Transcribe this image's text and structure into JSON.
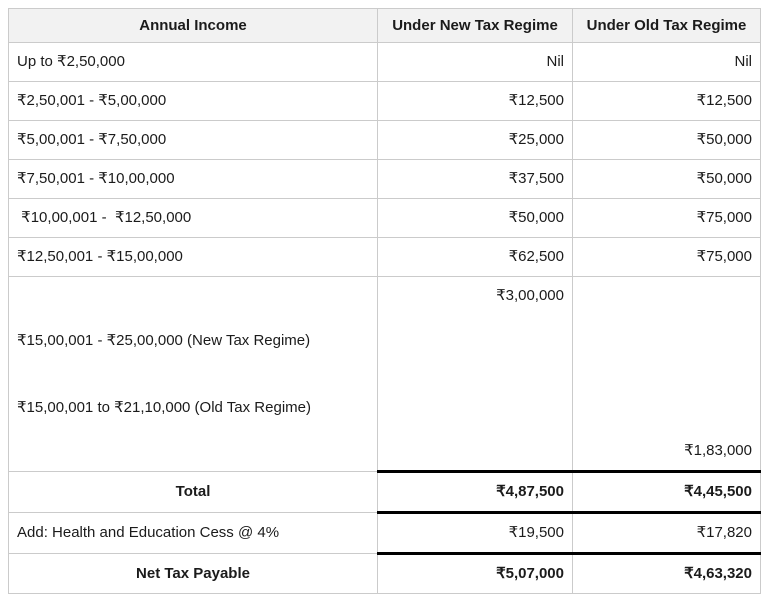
{
  "table": {
    "columns": [
      {
        "label": "Annual Income"
      },
      {
        "label": "Under New Tax Regime"
      },
      {
        "label": "Under Old Tax Regime"
      }
    ],
    "rows": [
      {
        "income": "Up to ₹2,50,000",
        "new": "Nil",
        "old": "Nil"
      },
      {
        "income": "₹2,50,001 - ₹5,00,000",
        "new": "₹12,500",
        "old": "₹12,500"
      },
      {
        "income": "₹5,00,001 - ₹7,50,000",
        "new": "₹25,000",
        "old": "₹50,000"
      },
      {
        "income": "₹7,50,001 - ₹10,00,000",
        "new": "₹37,500",
        "old": "₹50,000"
      },
      {
        "income": " ₹10,00,001 -  ₹12,50,000",
        "new": "₹50,000",
        "old": "₹75,000"
      },
      {
        "income": "₹12,50,001 - ₹15,00,000",
        "new": "₹62,500",
        "old": "₹75,000"
      },
      {
        "income_line1": "₹15,00,001 - ₹25,00,000 (New Tax Regime)",
        "income_line2": "₹15,00,001 to ₹21,10,000 (Old Tax Regime)",
        "new": "₹3,00,000",
        "old": "₹1,83,000"
      }
    ],
    "summary": [
      {
        "label": "Total",
        "new": "₹4,87,500",
        "old": "₹4,45,500"
      },
      {
        "label": "Add: Health and Education Cess @ 4%",
        "new": "₹19,500",
        "old": "₹17,820"
      },
      {
        "label": "Net Tax Payable",
        "new": "₹5,07,000",
        "old": "₹4,63,320"
      }
    ],
    "colors": {
      "header_bg": "#f2f2f2",
      "grid_border": "#cbcbcb",
      "emphasis_border": "#000000",
      "text": "#1b1b1b"
    }
  }
}
